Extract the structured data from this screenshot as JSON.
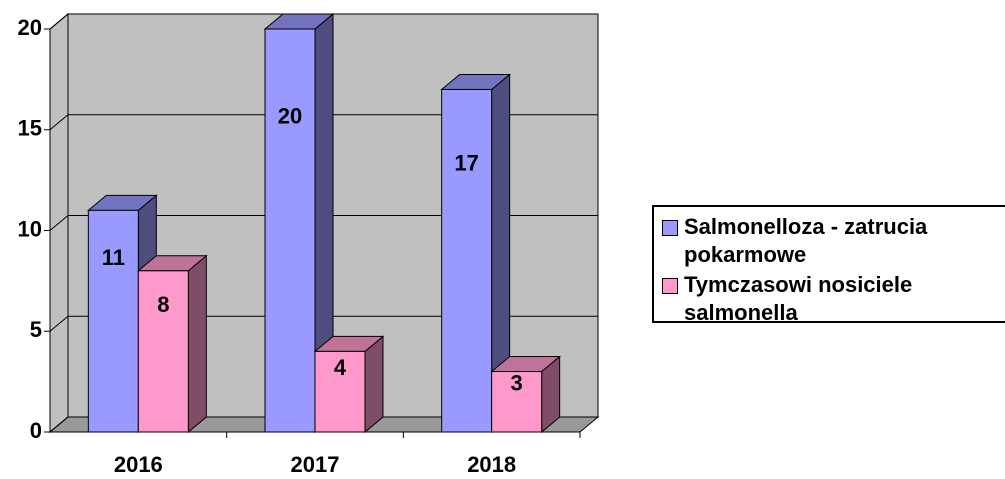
{
  "chart_data": {
    "type": "bar3d",
    "categories": [
      "2016",
      "2017",
      "2018"
    ],
    "series": [
      {
        "name": "Salmonelloza - zatrucia pokarmowe",
        "color": "#9999ff",
        "values": [
          11,
          20,
          17
        ]
      },
      {
        "name": "Tymczasowi nosiciele salmonella",
        "color": "#ff99cc",
        "values": [
          8,
          4,
          3
        ]
      }
    ],
    "ylim": [
      0,
      20
    ],
    "yticks": [
      0,
      5,
      10,
      15,
      20
    ],
    "grid": true,
    "legend": "right"
  }
}
